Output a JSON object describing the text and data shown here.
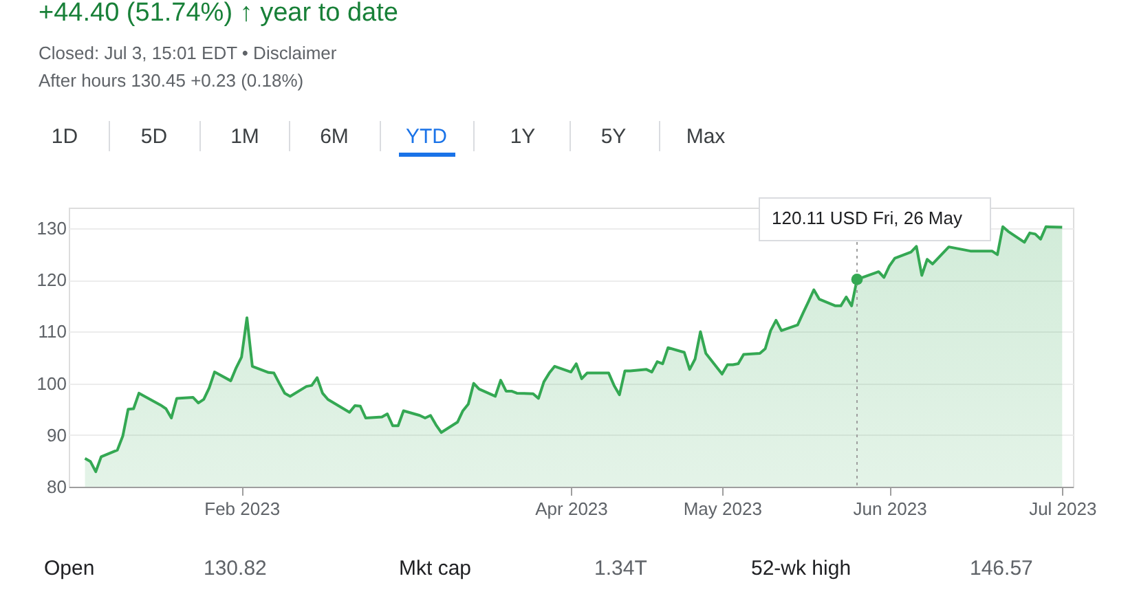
{
  "chart_data": {
    "type": "area",
    "title": "+44.40 (51.74%) ↑ year to date",
    "subtitle": "Closed: Jul 3, 15:01 EDT • Disclaimer",
    "annotations": [
      "After hours 130.45 +0.23 (0.18%)",
      "1D",
      "5D",
      "1M",
      "6M",
      "YTD",
      "1Y",
      "5Y",
      "Max",
      "Open",
      "130.82",
      "Mkt cap",
      "1.34T",
      "52-wk high",
      "146.57",
      {
        "text": "120.11 USD  Fri, 26 May",
        "x": "2023-05-26",
        "y": 120.11
      }
    ],
    "x": [
      "2023-01-03",
      "2023-01-04",
      "2023-01-05",
      "2023-01-06",
      "2023-01-09",
      "2023-01-10",
      "2023-01-11",
      "2023-01-12",
      "2023-01-13",
      "2023-01-17",
      "2023-01-18",
      "2023-01-19",
      "2023-01-20",
      "2023-01-23",
      "2023-01-24",
      "2023-01-25",
      "2023-01-26",
      "2023-01-27",
      "2023-01-30",
      "2023-01-31",
      "2023-02-01",
      "2023-02-02",
      "2023-02-03",
      "2023-02-06",
      "2023-02-07",
      "2023-02-08",
      "2023-02-09",
      "2023-02-10",
      "2023-02-13",
      "2023-02-14",
      "2023-02-15",
      "2023-02-16",
      "2023-02-17",
      "2023-02-21",
      "2023-02-22",
      "2023-02-23",
      "2023-02-24",
      "2023-02-27",
      "2023-02-28",
      "2023-03-01",
      "2023-03-02",
      "2023-03-03",
      "2023-03-06",
      "2023-03-07",
      "2023-03-08",
      "2023-03-09",
      "2023-03-10",
      "2023-03-13",
      "2023-03-14",
      "2023-03-15",
      "2023-03-16",
      "2023-03-17",
      "2023-03-20",
      "2023-03-21",
      "2023-03-22",
      "2023-03-23",
      "2023-03-24",
      "2023-03-27",
      "2023-03-28",
      "2023-03-29",
      "2023-03-30",
      "2023-03-31",
      "2023-04-03",
      "2023-04-04",
      "2023-04-05",
      "2023-04-06",
      "2023-04-10",
      "2023-04-11",
      "2023-04-12",
      "2023-04-13",
      "2023-04-14",
      "2023-04-17",
      "2023-04-18",
      "2023-04-19",
      "2023-04-20",
      "2023-04-21",
      "2023-04-24",
      "2023-04-25",
      "2023-04-26",
      "2023-04-27",
      "2023-04-28",
      "2023-05-01",
      "2023-05-02",
      "2023-05-03",
      "2023-05-04",
      "2023-05-05",
      "2023-05-08",
      "2023-05-09",
      "2023-05-10",
      "2023-05-11",
      "2023-05-12",
      "2023-05-15",
      "2023-05-16",
      "2023-05-17",
      "2023-05-18",
      "2023-05-19",
      "2023-05-22",
      "2023-05-23",
      "2023-05-24",
      "2023-05-25",
      "2023-05-26",
      "2023-05-30",
      "2023-05-31",
      "2023-06-01",
      "2023-06-02",
      "2023-06-05",
      "2023-06-06",
      "2023-06-07",
      "2023-06-08",
      "2023-06-09",
      "2023-06-12",
      "2023-06-13",
      "2023-06-14",
      "2023-06-15",
      "2023-06-16",
      "2023-06-20",
      "2023-06-21",
      "2023-06-22",
      "2023-06-23",
      "2023-06-26",
      "2023-06-27",
      "2023-06-28",
      "2023-06-29",
      "2023-06-30",
      "2023-07-03"
    ],
    "series": [
      {
        "color": "#34a853",
        "values": [
          85.5,
          84.9,
          82.9,
          85.8,
          87.1,
          89.8,
          95.0,
          95.1,
          98.1,
          95.8,
          95.1,
          93.3,
          97.1,
          97.3,
          96.2,
          96.9,
          99.1,
          102.2,
          100.5,
          103.0,
          105.1,
          112.7,
          103.3,
          102.1,
          102.0,
          100.0,
          98.1,
          97.5,
          99.4,
          99.6,
          101.1,
          98.1,
          96.9,
          94.4,
          95.7,
          95.6,
          93.3,
          93.5,
          94.1,
          91.8,
          91.8,
          94.7,
          93.8,
          93.3,
          93.8,
          92.0,
          90.5,
          92.5,
          94.7,
          96.0,
          100.0,
          98.9,
          97.5,
          100.6,
          98.5,
          98.5,
          98.1,
          98.0,
          97.1,
          100.3,
          102.0,
          103.3,
          102.2,
          103.8,
          100.9,
          102.0,
          102.0,
          99.6,
          97.8,
          102.4,
          102.4,
          102.7,
          102.2,
          104.2,
          103.8,
          106.9,
          106.0,
          102.7,
          104.7,
          110.0,
          105.8,
          101.8,
          103.6,
          103.6,
          103.8,
          105.6,
          105.8,
          106.7,
          110.2,
          112.2,
          110.2,
          111.3,
          113.6,
          115.8,
          118.1,
          116.3,
          115.0,
          115.0,
          116.7,
          115.0,
          120.11,
          121.6,
          120.5,
          122.7,
          124.2,
          125.4,
          126.5,
          120.9,
          124.0,
          123.1,
          126.4,
          null,
          null,
          null,
          125.6,
          125.6,
          124.9,
          130.3,
          129.4,
          127.3,
          129.1,
          128.9,
          127.9,
          130.3,
          130.2
        ]
      }
    ],
    "xlim": [
      "2022-12-31",
      "2023-07-05"
    ],
    "xticks": [
      {
        "value": "2023-02-01",
        "label": "Feb 2023"
      },
      {
        "value": "2023-04-03",
        "label": "Apr 2023"
      },
      {
        "value": "2023-05-01",
        "label": "May 2023"
      },
      {
        "value": "2023-06-01",
        "label": "Jun 2023"
      },
      {
        "value": "2023-07-03",
        "label": "Jul 2023"
      }
    ],
    "ylim": [
      80,
      134
    ],
    "yticks": [
      80,
      90,
      100,
      110,
      120,
      130
    ],
    "ref_lines": [
      {
        "axis": "x",
        "value": "2023-05-26",
        "color": "#9e9e9e",
        "line_style": "dotted"
      }
    ],
    "grid": "y",
    "marker": "none",
    "line_style": "solid"
  }
}
